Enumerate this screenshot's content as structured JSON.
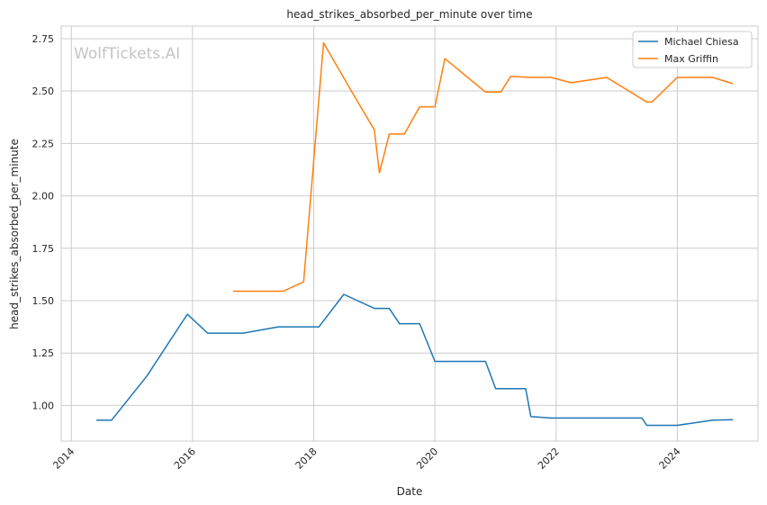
{
  "chart_data": {
    "type": "line",
    "title": "head_strikes_absorbed_per_minute over time",
    "xlabel": "Date",
    "ylabel": "head_strikes_absorbed_per_minute",
    "watermark": "WolfTickets.AI",
    "x_ticks": [
      "2014",
      "2016",
      "2018",
      "2020",
      "2022",
      "2024"
    ],
    "y_ticks": [
      "1.00",
      "1.25",
      "1.50",
      "1.75",
      "2.00",
      "2.25",
      "2.50",
      "2.75"
    ],
    "xlim": [
      "2013-11-01",
      "2025-05-01"
    ],
    "ylim": [
      0.83,
      2.81
    ],
    "grid": true,
    "legend_position": "top-right",
    "series": [
      {
        "name": "Michael Chiesa",
        "color": "#1f77b4",
        "points": [
          [
            "2014-06-01",
            0.93
          ],
          [
            "2014-09-01",
            0.93
          ],
          [
            "2015-04-01",
            1.14
          ],
          [
            "2015-12-01",
            1.435
          ],
          [
            "2016-04-01",
            1.345
          ],
          [
            "2016-11-01",
            1.345
          ],
          [
            "2017-06-01",
            1.375
          ],
          [
            "2018-02-01",
            1.375
          ],
          [
            "2018-07-01",
            1.53
          ],
          [
            "2019-01-01",
            1.463
          ],
          [
            "2019-04-01",
            1.463
          ],
          [
            "2019-06-01",
            1.39
          ],
          [
            "2019-10-01",
            1.39
          ],
          [
            "2020-01-01",
            1.21
          ],
          [
            "2020-11-01",
            1.21
          ],
          [
            "2021-01-01",
            1.08
          ],
          [
            "2021-07-01",
            1.08
          ],
          [
            "2021-08-01",
            0.947
          ],
          [
            "2021-12-01",
            0.94
          ],
          [
            "2023-06-01",
            0.94
          ],
          [
            "2023-07-01",
            0.905
          ],
          [
            "2024-01-01",
            0.905
          ],
          [
            "2024-08-01",
            0.93
          ],
          [
            "2024-12-01",
            0.932
          ]
        ]
      },
      {
        "name": "Max Griffin",
        "color": "#ff7f0e",
        "points": [
          [
            "2016-09-01",
            1.545
          ],
          [
            "2017-07-01",
            1.545
          ],
          [
            "2017-11-01",
            1.59
          ],
          [
            "2018-03-01",
            2.73
          ],
          [
            "2018-08-01",
            2.52
          ],
          [
            "2019-01-01",
            2.315
          ],
          [
            "2019-02-01",
            2.11
          ],
          [
            "2019-04-01",
            2.295
          ],
          [
            "2019-07-01",
            2.295
          ],
          [
            "2019-10-01",
            2.425
          ],
          [
            "2020-01-01",
            2.425
          ],
          [
            "2020-03-01",
            2.655
          ],
          [
            "2020-11-01",
            2.495
          ],
          [
            "2021-02-01",
            2.495
          ],
          [
            "2021-04-01",
            2.57
          ],
          [
            "2021-08-01",
            2.565
          ],
          [
            "2021-12-01",
            2.565
          ],
          [
            "2022-04-01",
            2.54
          ],
          [
            "2022-11-01",
            2.565
          ],
          [
            "2023-07-01",
            2.448
          ],
          [
            "2023-08-01",
            2.448
          ],
          [
            "2024-01-01",
            2.565
          ],
          [
            "2024-08-01",
            2.565
          ],
          [
            "2024-12-01",
            2.535
          ]
        ]
      }
    ]
  }
}
